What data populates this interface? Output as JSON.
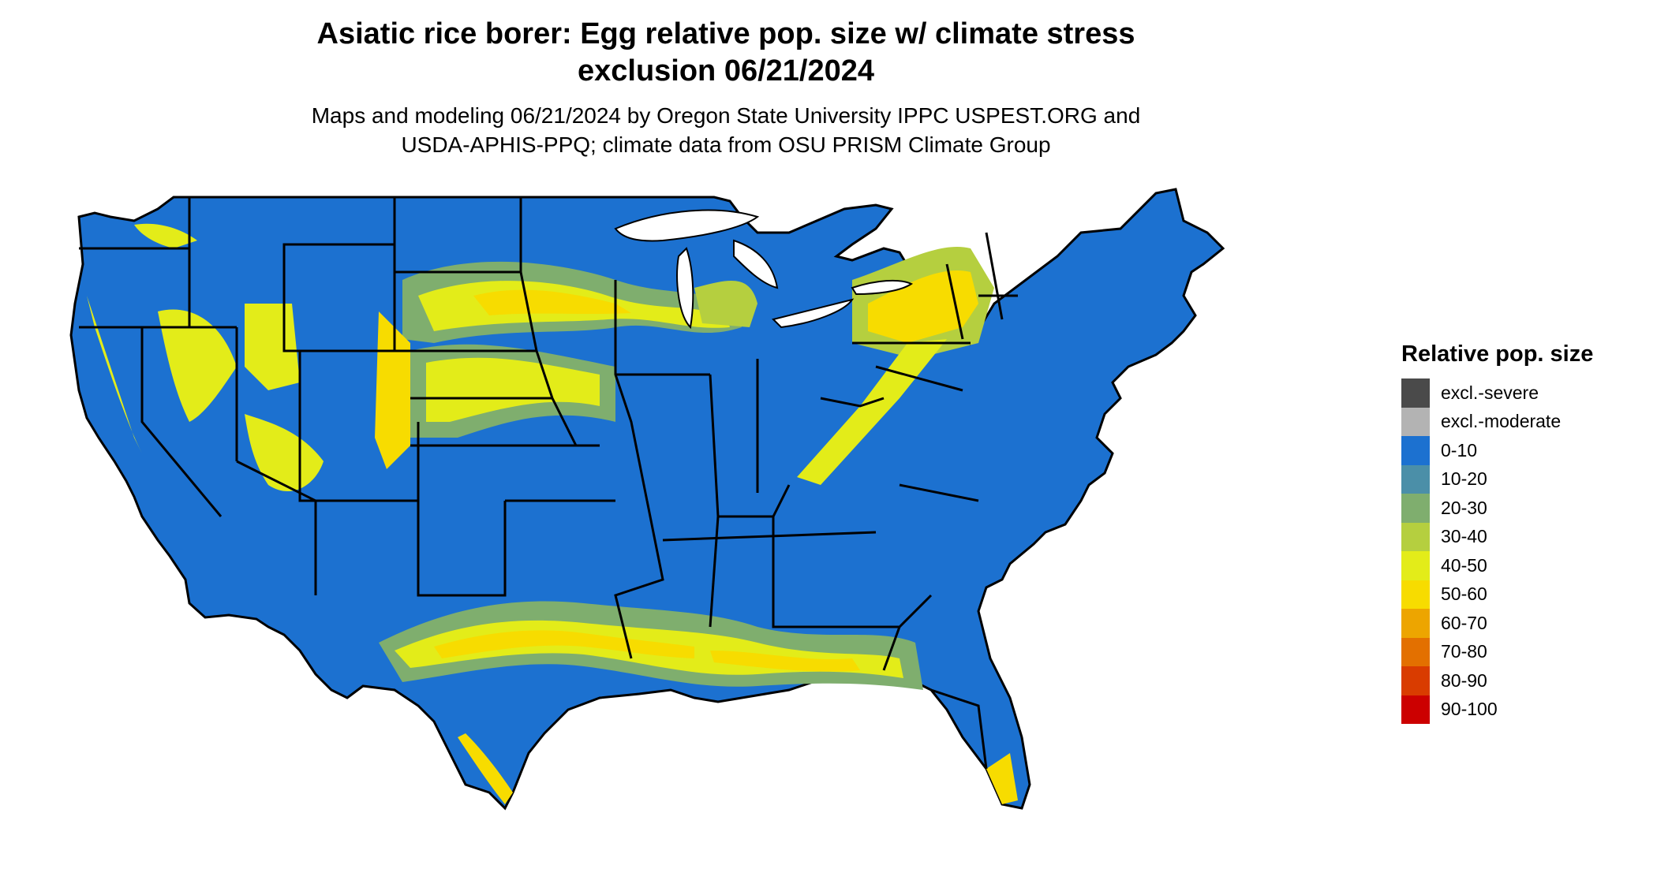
{
  "title": {
    "line1": "Asiatic rice borer: Egg relative pop. size w/ climate stress",
    "line2": "exclusion 06/21/2024"
  },
  "subtitle": {
    "line1": "Maps and modeling 06/21/2024 by Oregon State University IPPC USPEST.ORG and",
    "line2": "USDA-APHIS-PPQ; climate data from OSU PRISM Climate Group"
  },
  "map": {
    "base_color": "#1C71D0",
    "border_color": "#000000"
  },
  "legend": {
    "title": "Relative pop. size",
    "items": [
      {
        "label": "excl.-severe",
        "color": "#4A4A4A"
      },
      {
        "label": "excl.-moderate",
        "color": "#B3B3B3"
      },
      {
        "label": "0-10",
        "color": "#1C71D0"
      },
      {
        "label": "10-20",
        "color": "#4B8FA8"
      },
      {
        "label": "20-30",
        "color": "#7FAE6E"
      },
      {
        "label": "30-40",
        "color": "#B5CF3F"
      },
      {
        "label": "40-50",
        "color": "#E3EC19"
      },
      {
        "label": "50-60",
        "color": "#F7DC00"
      },
      {
        "label": "60-70",
        "color": "#EDA500"
      },
      {
        "label": "70-80",
        "color": "#E37000"
      },
      {
        "label": "80-90",
        "color": "#D93C00"
      },
      {
        "label": "90-100",
        "color": "#CC0000"
      }
    ]
  }
}
